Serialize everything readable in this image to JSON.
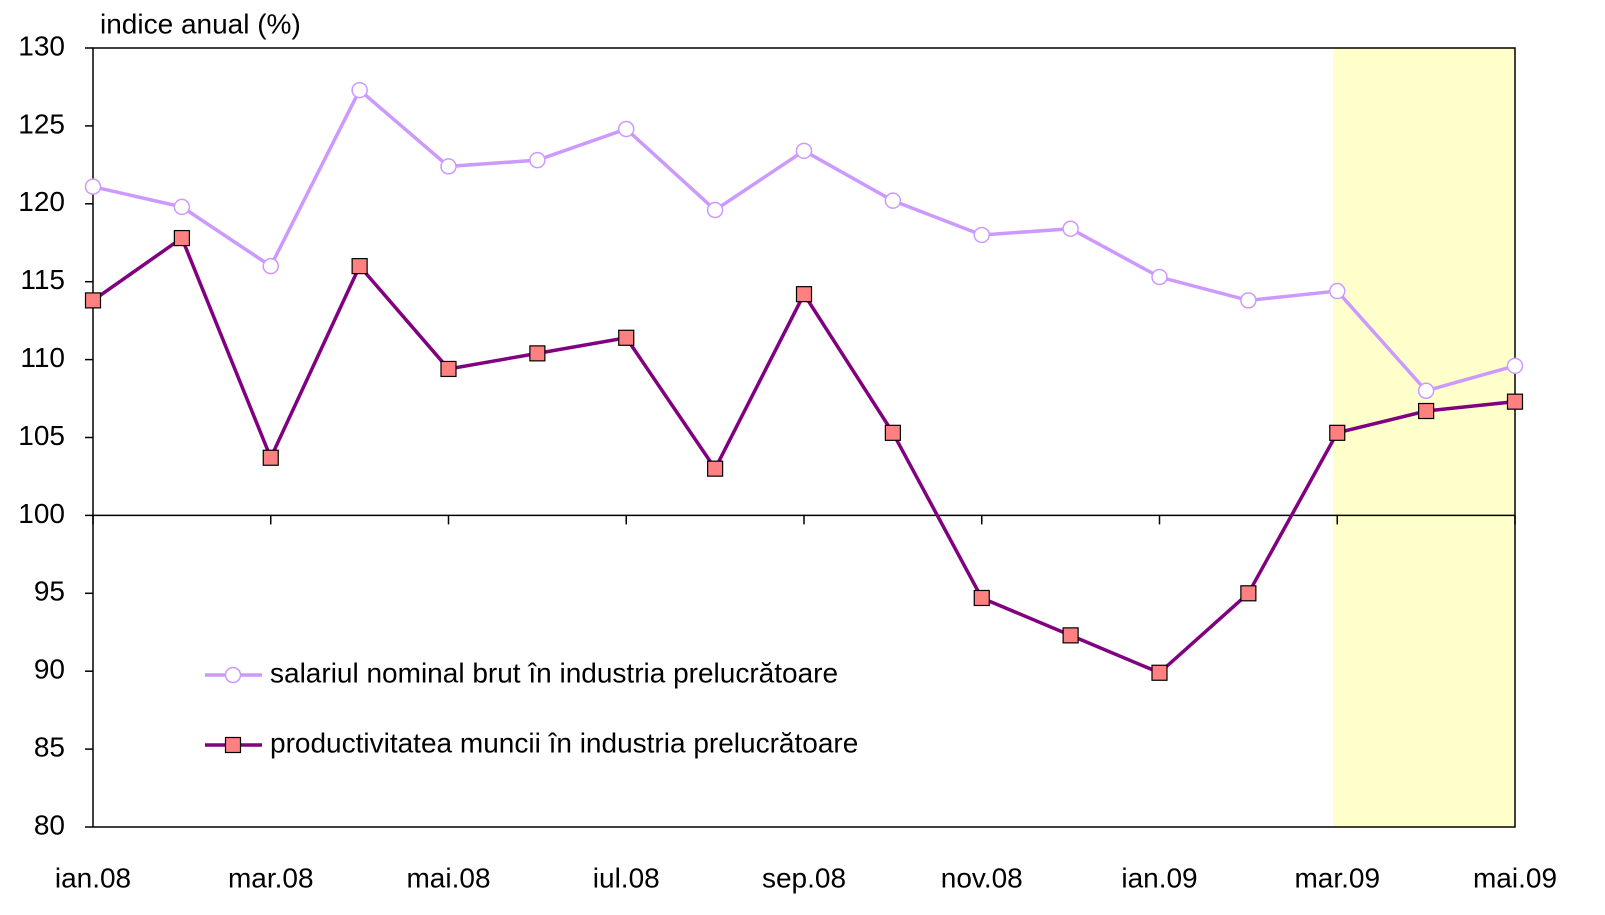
{
  "chart_data": {
    "type": "line",
    "y_label": "indice anual (%)",
    "categories": [
      "ian.08",
      null,
      "mar.08",
      null,
      "mai.08",
      null,
      "iul.08",
      null,
      "sep.08",
      null,
      "nov.08",
      null,
      "ian.09",
      null,
      "mar.09",
      null,
      "mai.09"
    ],
    "series": [
      {
        "name": "salariul nominal brut în industria prelucrătoare",
        "color": "#cc99ff",
        "marker": "circle",
        "marker_fill": "#ffffff",
        "values": [
          121.1,
          119.8,
          116.0,
          127.3,
          122.4,
          122.8,
          124.8,
          119.6,
          123.4,
          120.2,
          118.0,
          118.4,
          115.3,
          113.8,
          114.4,
          108.0,
          109.6
        ]
      },
      {
        "name": "productivitatea muncii în industria prelucrătoare",
        "color": "#800080",
        "marker": "square",
        "marker_fill": "#ff8080",
        "values": [
          113.8,
          117.8,
          103.7,
          116.0,
          109.4,
          110.4,
          111.4,
          103.0,
          114.2,
          105.3,
          94.7,
          92.3,
          89.9,
          95.0,
          105.3,
          106.7,
          107.3
        ]
      }
    ],
    "ylim": [
      80,
      130
    ],
    "yticks": [
      80,
      85,
      90,
      95,
      100,
      105,
      110,
      115,
      120,
      125,
      130
    ],
    "x_axis_at": 100,
    "grid": false,
    "legend": "lower left"
  }
}
